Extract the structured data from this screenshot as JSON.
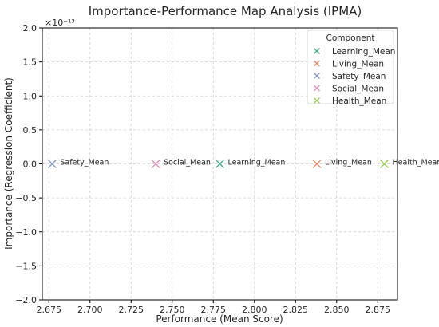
{
  "chart_data": {
    "type": "scatter",
    "title": "Importance-Performance Map Analysis (IPMA)",
    "xlabel": "Performance (Mean Score)",
    "ylabel": "Importance (Regression Coefficient)",
    "y_offset_label": "×10⁻¹³",
    "xlim": [
      2.671,
      2.887
    ],
    "ylim": [
      -2.0,
      2.0
    ],
    "x_ticks": [
      "2.675",
      "2.700",
      "2.725",
      "2.750",
      "2.775",
      "2.800",
      "2.825",
      "2.850",
      "2.875"
    ],
    "x_tick_values": [
      2.675,
      2.7,
      2.725,
      2.75,
      2.775,
      2.8,
      2.825,
      2.85,
      2.875
    ],
    "y_ticks": [
      "2.0",
      "1.5",
      "1.0",
      "0.5",
      "0.0",
      "−0.5",
      "−1.0",
      "−1.5",
      "−2.0"
    ],
    "y_tick_values": [
      2.0,
      1.5,
      1.0,
      0.5,
      0.0,
      -0.5,
      -1.0,
      -1.5,
      -2.0
    ],
    "grid": true,
    "legend_position": "top-right",
    "legend_title": "Component",
    "series": [
      {
        "name": "Learning_Mean",
        "x": 2.779,
        "y": 0.0,
        "color": "#3fae8f"
      },
      {
        "name": "Living_Mean",
        "x": 2.838,
        "y": 0.0,
        "color": "#ee8a61"
      },
      {
        "name": "Safety_Mean",
        "x": 2.677,
        "y": 0.0,
        "color": "#8096c9"
      },
      {
        "name": "Social_Mean",
        "x": 2.74,
        "y": 0.0,
        "color": "#e48cbc"
      },
      {
        "name": "Health_Mean",
        "x": 2.879,
        "y": 0.0,
        "color": "#9bce4a"
      }
    ]
  }
}
